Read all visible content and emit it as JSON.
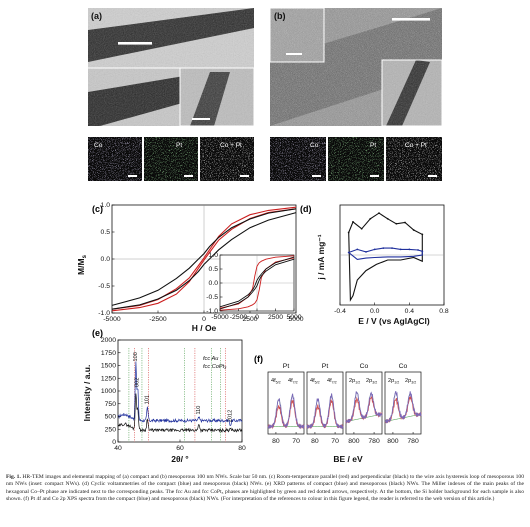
{
  "panels": {
    "a": "(a)",
    "b": "(b)",
    "c": "(c)",
    "d": "(d)",
    "e": "(e)",
    "f": "(f)"
  },
  "mapping": {
    "compact": [
      "Co",
      "Pt",
      "Co + Pt"
    ],
    "mesoporous": [
      "Co",
      "Pt",
      "Co + Pt"
    ]
  },
  "colors": {
    "parallel": "#cc1f1f",
    "perpendicular": "#111111",
    "compact": "#1f2f9c",
    "mesoporous": "#111111",
    "fcc_au": "#2a8a2a",
    "fcc_copt3": "#cc1f1f"
  },
  "chart_data": [
    {
      "id": "c",
      "type": "line",
      "xlabel": "H / Oe",
      "ylabel": "M/Ms",
      "xlim": [
        -5000,
        5000
      ],
      "ylim": [
        -1.0,
        1.0
      ],
      "xticks": [
        "-5000",
        "-2500",
        "0",
        "2500",
        "5000"
      ],
      "yticks": [
        "-1.0",
        "-0.5",
        "0.0",
        "0.5",
        "1.0"
      ],
      "series": [
        {
          "color": "red",
          "upper": {
            "x": [
              -5000,
              -3500,
              -2500,
              -1500,
              -800,
              -300,
              0,
              300,
              800,
              1500,
              2500,
              3500,
              5000
            ],
            "y": [
              -0.93,
              -0.86,
              -0.75,
              -0.55,
              -0.35,
              -0.12,
              0.02,
              0.17,
              0.42,
              0.65,
              0.82,
              0.9,
              0.96
            ]
          }
        },
        {
          "color": "black",
          "upper": {
            "x": [
              -5000,
              -3500,
              -2500,
              -1500,
              -800,
              -300,
              0,
              300,
              800,
              1500,
              2500,
              3500,
              5000
            ],
            "y": [
              -0.86,
              -0.72,
              -0.58,
              -0.36,
              -0.17,
              0.0,
              0.1,
              0.23,
              0.4,
              0.58,
              0.74,
              0.85,
              0.93
            ]
          }
        }
      ],
      "inset": {
        "xlim": [
          -5000,
          5000
        ],
        "ylim": [
          -1.0,
          1.0
        ],
        "xticks": [
          "-5000",
          "-2500",
          "0",
          "2500",
          "5000"
        ],
        "yticks": [
          "-1.0",
          "-0.5",
          "0.0",
          "0.5",
          "1.0"
        ],
        "series": [
          {
            "color": "red",
            "upper": {
              "x": [
                -5000,
                -2500,
                -1200,
                -600,
                -300,
                0,
                300,
                600,
                1200,
                2500,
                5000
              ],
              "y": [
                -0.9,
                -0.75,
                -0.5,
                -0.2,
                0.25,
                0.6,
                0.72,
                0.78,
                0.85,
                0.92,
                0.97
              ]
            }
          },
          {
            "color": "black",
            "upper": {
              "x": [
                -5000,
                -2500,
                -1200,
                -600,
                -300,
                0,
                300,
                600,
                1200,
                2500,
                5000
              ],
              "y": [
                -0.85,
                -0.65,
                -0.42,
                -0.25,
                -0.1,
                0.1,
                0.22,
                0.32,
                0.5,
                0.72,
                0.93
              ]
            }
          }
        ]
      }
    },
    {
      "id": "d",
      "type": "line",
      "xlabel": "E / V (vs AglAgCl)",
      "ylabel": "j / mA mg⁻¹",
      "xlim": [
        -0.4,
        0.8
      ],
      "xticks": [
        "-0.4",
        "0.0",
        "0.4",
        "0.8"
      ],
      "yticks": [
        "8",
        "4",
        "0",
        "-4",
        "-8"
      ],
      "ylim": [
        -8,
        8
      ],
      "series": [
        {
          "color": "black",
          "fwd": {
            "x": [
              -0.3,
              -0.25,
              -0.15,
              -0.05,
              0.05,
              0.15,
              0.25,
              0.35,
              0.45,
              0.55
            ],
            "y": [
              3.6,
              5.3,
              4.2,
              5.8,
              6.7,
              5.8,
              5.0,
              5.2,
              4.0,
              3.3
            ]
          },
          "rev": {
            "x": [
              0.55,
              0.45,
              0.3,
              0.15,
              0.02,
              -0.1,
              -0.2,
              -0.25,
              -0.28,
              -0.3
            ],
            "y": [
              -1.0,
              -0.4,
              -0.8,
              -0.8,
              -1.5,
              -2.5,
              -4.0,
              -6.5,
              -7.2,
              3.6
            ]
          }
        },
        {
          "color": "blue",
          "fwd": {
            "x": [
              -0.3,
              -0.2,
              -0.1,
              0.0,
              0.1,
              0.2,
              0.3,
              0.4,
              0.5,
              0.55
            ],
            "y": [
              0.4,
              0.9,
              0.5,
              0.9,
              1.1,
              1.1,
              0.9,
              0.9,
              0.8,
              0.6
            ]
          },
          "rev": {
            "x": [
              0.55,
              0.45,
              0.3,
              0.15,
              0.0,
              -0.1,
              -0.2,
              -0.3
            ],
            "y": [
              0.0,
              -0.2,
              -0.3,
              -0.3,
              -0.4,
              -0.5,
              -0.7,
              0.4
            ]
          }
        }
      ]
    },
    {
      "id": "e",
      "type": "line",
      "xlabel": "2θ/ °",
      "ylabel": "Intensity / a.u.",
      "xlim": [
        33,
        92
      ],
      "ylim": [
        0,
        2000
      ],
      "xticks": [
        "40",
        "60",
        "80"
      ],
      "yticks": [
        "0",
        "250",
        "500",
        "750",
        "1000",
        "1250",
        "1500",
        "1750",
        "2000"
      ],
      "legend": [
        "fcc Au",
        "fcc CoPt₃"
      ],
      "miller": [
        "100",
        "002",
        "101",
        "110",
        "2012"
      ],
      "peaks": [
        [
          41.5,
          1520
        ],
        [
          42.4,
          1020
        ],
        [
          47.0,
          680
        ],
        [
          71.5,
          480
        ],
        [
          86.5,
          330
        ]
      ],
      "baseline_compact": 420,
      "baseline_meso": 230,
      "marker_au": [
        38.2,
        44.4,
        64.6,
        77.5,
        81.7
      ],
      "marker_copt3": [
        40.9,
        47.6,
        69.6,
        84.1
      ]
    },
    {
      "id": "f",
      "type": "line",
      "xlabel": "BE / eV",
      "subplots": [
        {
          "title": "Pt",
          "peaks": [
            "4f",
            "4f"
          ],
          "subs": [
            "5/2",
            "7/2"
          ],
          "xticks": [
            "80",
            "70"
          ],
          "xlim": [
            82,
            66
          ]
        },
        {
          "title": "Pt",
          "peaks": [
            "4f",
            "4f"
          ],
          "subs": [
            "5/2",
            "7/2"
          ],
          "xticks": [
            "80",
            "70"
          ],
          "xlim": [
            82,
            66
          ]
        },
        {
          "title": "Co",
          "peaks": [
            "2p",
            "2p"
          ],
          "subs": [
            "1/2",
            "3/2"
          ],
          "xticks": [
            "800",
            "780"
          ],
          "xlim": [
            808,
            770
          ]
        },
        {
          "title": "Co",
          "peaks": [
            "2p",
            "2p"
          ],
          "subs": [
            "1/2",
            "3/2"
          ],
          "xticks": [
            "800",
            "780"
          ],
          "xlim": [
            808,
            770
          ]
        }
      ]
    }
  ],
  "caption": {
    "label": "Fig. 1.",
    "text": "HR-TEM images and elemental mapping of (a) compact and (b) mesoporous 100 nm NWs. Scale bar 50 nm. (c) Room-temperature parallel (red) and perpendicular (black) to the wire axis hysteresis loop of mesoporous 100 nm NWs (inset: compact NWs). (d) Cyclic voltammetries of the compact (blue) and mesoporous (black) NWs. (e) XRD patterns of compact (blue) and mesoporous (black) NWs. The Miller indexes of the main peaks of the hexagonal Co–Pt phase are indicated next to the corresponding peaks. The fcc Au and fcc CoPt₃ phases are highlighted by green and red dotted arrows, respectively. At the bottom, the Si holder background for each sample is also shown. (f) Pt 4f and Co 2p XPS spectra from the compact (blue) and mesoporous (black) NWs. (For interpretation of the references to colour in this figure legend, the reader is referred to the web version of this article.)"
  }
}
